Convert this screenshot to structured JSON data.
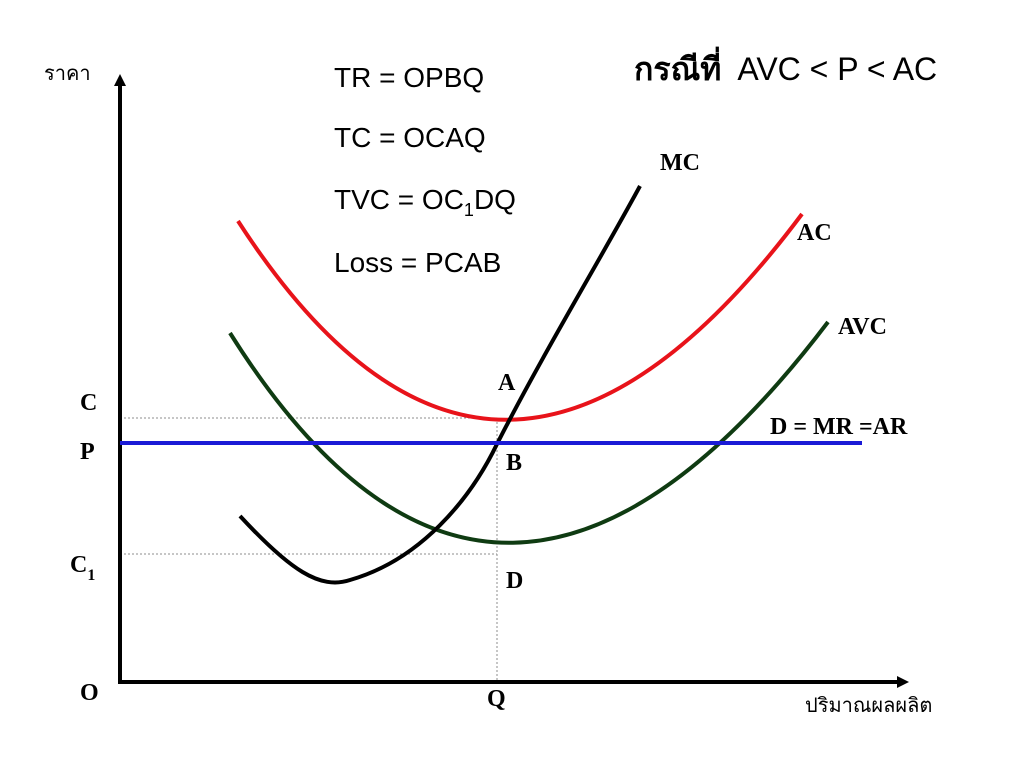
{
  "title": {
    "prefix": "กรณีที่",
    "condition": "AVC < P < AC"
  },
  "formulas": {
    "tr": "TR = OPBQ",
    "tc": "TC = OCAQ",
    "tvc_prefix": "TVC = OC",
    "tvc_sub": "1",
    "tvc_suffix": "DQ",
    "loss": "Loss = PCAB"
  },
  "axes": {
    "y_label": "ราคา",
    "x_label": "ปริมาณผลผลิต",
    "origin": "O",
    "q": "Q"
  },
  "price_labels": {
    "c": "C",
    "p": "P",
    "c1_main": "C",
    "c1_sub": "1"
  },
  "curves": {
    "mc": "MC",
    "ac": "AC",
    "avc": "AVC",
    "demand": "D = MR =AR"
  },
  "points": {
    "a": "A",
    "b": "B",
    "d": "D"
  },
  "colors": {
    "mc": "#000000",
    "ac": "#e8131a",
    "avc": "#0f3b12",
    "demand": "#1a1ad6",
    "axis": "#000000",
    "guide": "#8c8c8c"
  }
}
